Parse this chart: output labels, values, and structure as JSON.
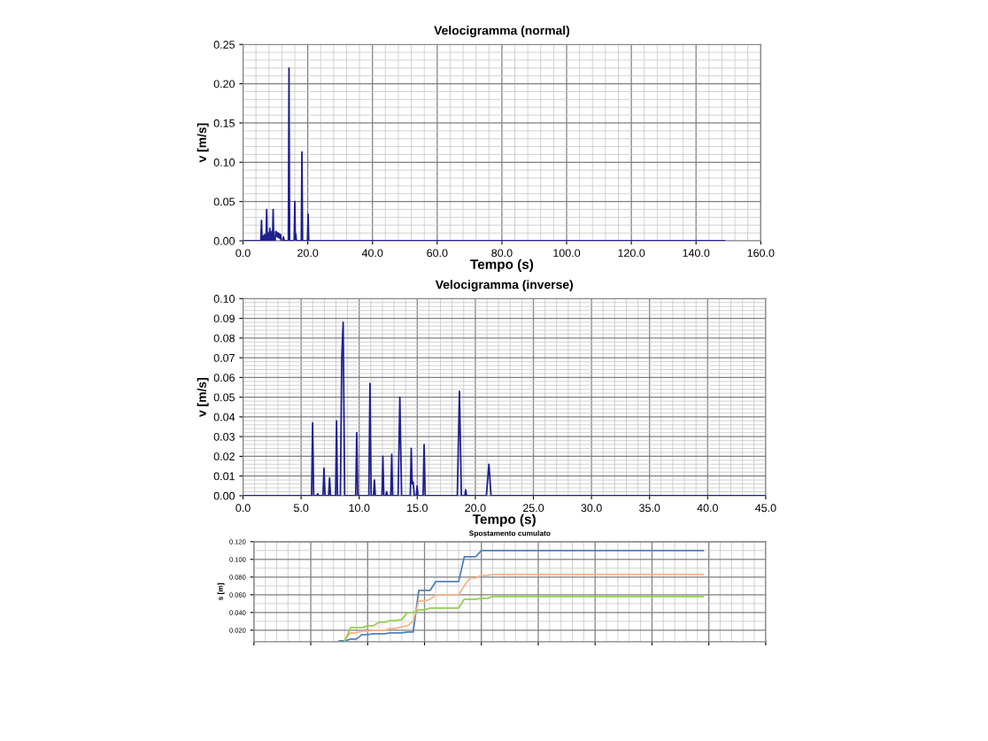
{
  "chart_data": [
    {
      "type": "line",
      "title": "Velocigramma (normal)",
      "xlabel": "Tempo (s)",
      "ylabel": "v [m/s]",
      "grid": true,
      "xlim": [
        0,
        160
      ],
      "ylim": [
        0,
        0.25
      ],
      "xticks": [
        {
          "value": 0,
          "label": "0.0"
        },
        {
          "value": 20,
          "label": "20.0"
        },
        {
          "value": 40,
          "label": "40.0"
        },
        {
          "value": 60,
          "label": "60.0"
        },
        {
          "value": 80,
          "label": "80.0"
        },
        {
          "value": 100,
          "label": "100.0"
        },
        {
          "value": 120,
          "label": "120.0"
        },
        {
          "value": 140,
          "label": "140.0"
        },
        {
          "value": 160,
          "label": "160.0"
        }
      ],
      "yticks": [
        {
          "value": 0,
          "label": "0.00"
        },
        {
          "value": 0.05,
          "label": "0.05"
        },
        {
          "value": 0.1,
          "label": "0.10"
        },
        {
          "value": 0.15,
          "label": "0.15"
        },
        {
          "value": 0.2,
          "label": "0.20"
        },
        {
          "value": 0.25,
          "label": "0.25"
        }
      ],
      "series": [
        {
          "color": "#1f1f8f",
          "x": [
            0,
            5.5,
            5.7,
            5.9,
            6.2,
            6.4,
            6.6,
            6.8,
            7.1,
            7.3,
            7.5,
            7.7,
            7.9,
            8.1,
            8.3,
            8.5,
            8.7,
            8.9,
            9.1,
            9.3,
            9.5,
            9.9,
            10.1,
            10.25,
            10.4,
            10.6,
            10.8,
            11.0,
            11.2,
            11.4,
            11.6,
            11.8,
            12.3,
            12.5,
            12.7,
            14.0,
            14.2,
            14.4,
            15.8,
            16.0,
            16.15,
            16.3,
            16.5,
            18.0,
            18.2,
            18.4,
            19.9,
            20.1,
            20.3,
            148.8
          ],
          "values": [
            0,
            0,
            0.026,
            0,
            0.006,
            0,
            0.008,
            0,
            0,
            0.04,
            0,
            0,
            0.01,
            0,
            0.016,
            0,
            0,
            0.012,
            0,
            0.04,
            0,
            0,
            0.012,
            0.006,
            0.011,
            0.005,
            0.01,
            0.004,
            0.009,
            0.003,
            0.008,
            0,
            0,
            0.005,
            0,
            0,
            0.22,
            0,
            0,
            0.05,
            0.002,
            0.009,
            0,
            0,
            0.113,
            0,
            0,
            0.034,
            0,
            0
          ]
        }
      ]
    },
    {
      "type": "line",
      "title": "Velocigramma (inverse)",
      "xlabel": "Tempo (s)",
      "ylabel": "v [m/s]",
      "grid": true,
      "xlim": [
        0,
        45
      ],
      "ylim": [
        0,
        0.1
      ],
      "xticks": [
        {
          "value": 0,
          "label": "0.0"
        },
        {
          "value": 5,
          "label": "5.0"
        },
        {
          "value": 10,
          "label": "10.0"
        },
        {
          "value": 15,
          "label": "15.0"
        },
        {
          "value": 20,
          "label": "20.0"
        },
        {
          "value": 25,
          "label": "25.0"
        },
        {
          "value": 30,
          "label": "30.0"
        },
        {
          "value": 35,
          "label": "35.0"
        },
        {
          "value": 40,
          "label": "40.0"
        },
        {
          "value": 45,
          "label": "45.0"
        }
      ],
      "yticks": [
        {
          "value": 0,
          "label": "0.00"
        },
        {
          "value": 0.01,
          "label": "0.01"
        },
        {
          "value": 0.02,
          "label": "0.02"
        },
        {
          "value": 0.03,
          "label": "0.03"
        },
        {
          "value": 0.04,
          "label": "0.04"
        },
        {
          "value": 0.05,
          "label": "0.05"
        },
        {
          "value": 0.06,
          "label": "0.06"
        },
        {
          "value": 0.07,
          "label": "0.07"
        },
        {
          "value": 0.08,
          "label": "0.08"
        },
        {
          "value": 0.09,
          "label": "0.09"
        },
        {
          "value": 0.1,
          "label": "0.10"
        }
      ],
      "series": [
        {
          "color": "#1f1f8f",
          "x": [
            0,
            5.9,
            5.99,
            6.08,
            6.35,
            6.43,
            6.5,
            6.88,
            6.97,
            7.06,
            7.37,
            7.45,
            7.53,
            7.97,
            8.05,
            8.13,
            8.38,
            8.5,
            8.62,
            8.75,
            9.7,
            9.79,
            9.88,
            10.83,
            10.93,
            11.03,
            11.23,
            11.31,
            11.39,
            11.96,
            12.04,
            12.12,
            12.29,
            12.36,
            12.43,
            12.72,
            12.8,
            12.88,
            13.35,
            13.5,
            13.65,
            14.4,
            14.48,
            14.56,
            14.64,
            14.75,
            14.92,
            14.99,
            15.06,
            15.5,
            15.59,
            15.68,
            18.45,
            18.63,
            18.8,
            19.1,
            19.17,
            19.24,
            20.95,
            21.17,
            21.35,
            45
          ],
          "values": [
            0,
            0,
            0.037,
            0,
            0,
            0.001,
            0,
            0,
            0.014,
            0,
            0,
            0.009,
            0,
            0,
            0.038,
            0,
            0,
            0.07,
            0.088,
            0,
            0,
            0.032,
            0,
            0,
            0.057,
            0,
            0,
            0.008,
            0,
            0,
            0.02,
            0,
            0,
            0.002,
            0,
            0,
            0.021,
            0,
            0,
            0.05,
            0,
            0,
            0.024,
            0.006,
            0.007,
            0,
            0,
            0.005,
            0,
            0,
            0.026,
            0,
            0,
            0.053,
            0,
            0,
            0.003,
            0,
            0,
            0.016,
            0,
            0
          ]
        }
      ]
    },
    {
      "type": "line",
      "title": "Spostamento cumulato",
      "ylabel": "s [m]",
      "grid": true,
      "tick_labels": "y",
      "ylim": [
        0.007,
        0.12
      ],
      "yticks": [
        {
          "value": 0.02,
          "label": "0.020"
        },
        {
          "value": 0.04,
          "label": "0.040"
        },
        {
          "value": 0.06,
          "label": "0.060"
        },
        {
          "value": 0.08,
          "label": "0.080"
        },
        {
          "value": 0.1,
          "label": "0.100"
        },
        {
          "value": 0.12,
          "label": "0.120"
        }
      ],
      "categories": [
        null,
        null,
        null,
        null,
        null,
        null,
        null,
        null,
        null,
        null,
        null,
        null,
        null,
        null,
        null,
        null,
        null,
        null,
        null,
        null,
        null,
        null,
        null,
        null,
        null,
        null,
        null,
        null,
        null,
        null,
        null,
        null,
        null,
        null,
        null,
        null,
        null,
        null,
        null,
        null,
        null,
        null,
        null,
        null,
        null,
        null,
        null,
        null,
        null,
        null,
        null,
        null,
        null,
        null,
        null,
        null,
        null,
        null,
        null,
        null,
        null,
        null,
        null,
        null,
        null,
        null,
        null,
        null,
        null,
        null,
        null,
        null,
        null,
        null,
        null,
        null,
        null,
        null,
        null,
        null,
        null,
        null,
        null,
        null,
        null,
        null,
        null,
        null,
        null,
        null,
        null
      ],
      "series": [
        {
          "color": "#4f81bd",
          "values": [
            null,
            null,
            null,
            null,
            null,
            null,
            null,
            null,
            null,
            null,
            null,
            null,
            null,
            null,
            null,
            0.008,
            0.008,
            0.01,
            0.01,
            0.015,
            0.015,
            0.016,
            0.016,
            0.016,
            0.017,
            0.017,
            0.017,
            0.018,
            0.018,
            0.065,
            0.065,
            0.065,
            0.075,
            0.075,
            0.075,
            0.075,
            0.075,
            0.103,
            0.103,
            0.103,
            0.11,
            0.11,
            0.11,
            0.11,
            0.11,
            0.11,
            0.11,
            0.11,
            0.11,
            0.11,
            0.11,
            0.11,
            0.11,
            0.11,
            0.11,
            0.11,
            0.11,
            0.11,
            0.11,
            0.11,
            0.11,
            0.11,
            0.11,
            0.11,
            0.11,
            0.11,
            0.11,
            0.11,
            0.11,
            0.11,
            0.11,
            0.11,
            0.11,
            0.11,
            0.11,
            0.11,
            0.11,
            0.11,
            0.11,
            0.11,
            null,
            null,
            null,
            null,
            null,
            null,
            null,
            null,
            null,
            null,
            null
          ]
        },
        {
          "color": "#f9b384",
          "values": [
            null,
            null,
            null,
            null,
            null,
            null,
            null,
            null,
            null,
            null,
            null,
            null,
            null,
            null,
            null,
            null,
            0.01,
            0.017,
            0.017,
            0.019,
            0.019,
            0.02,
            0.02,
            0.02,
            0.022,
            0.022,
            0.024,
            0.025,
            0.03,
            0.053,
            0.053,
            0.055,
            0.06,
            0.06,
            0.06,
            0.06,
            0.06,
            0.07,
            0.079,
            0.079,
            0.082,
            0.082,
            0.083,
            0.083,
            0.083,
            0.083,
            0.083,
            0.083,
            0.083,
            0.083,
            0.083,
            0.083,
            0.083,
            0.083,
            0.083,
            0.083,
            0.083,
            0.083,
            0.083,
            0.083,
            0.083,
            0.083,
            0.083,
            0.083,
            0.083,
            0.083,
            0.083,
            0.083,
            0.083,
            0.083,
            0.083,
            0.083,
            0.083,
            0.083,
            0.083,
            0.083,
            0.083,
            0.083,
            0.083,
            0.083,
            null,
            null,
            null,
            null,
            null,
            null,
            null,
            null,
            null,
            null,
            null
          ]
        },
        {
          "color": "#92d050",
          "values": [
            null,
            null,
            null,
            null,
            null,
            null,
            null,
            null,
            null,
            null,
            null,
            null,
            null,
            null,
            null,
            null,
            0.008,
            0.023,
            0.023,
            0.023,
            0.025,
            0.025,
            0.029,
            0.029,
            0.031,
            0.031,
            0.032,
            0.04,
            0.04,
            0.043,
            0.043,
            0.045,
            0.045,
            0.045,
            0.045,
            0.045,
            0.045,
            0.055,
            0.055,
            0.055,
            0.056,
            0.056,
            0.058,
            0.058,
            0.058,
            0.058,
            0.058,
            0.058,
            0.058,
            0.058,
            0.058,
            0.058,
            0.058,
            0.058,
            0.058,
            0.058,
            0.058,
            0.058,
            0.058,
            0.058,
            0.058,
            0.058,
            0.058,
            0.058,
            0.058,
            0.058,
            0.058,
            0.058,
            0.058,
            0.058,
            0.058,
            0.058,
            0.058,
            0.058,
            0.058,
            0.058,
            0.058,
            0.058,
            0.058,
            0.058,
            null,
            null,
            null,
            null,
            null,
            null,
            null,
            null,
            null,
            null,
            null
          ]
        }
      ]
    }
  ]
}
